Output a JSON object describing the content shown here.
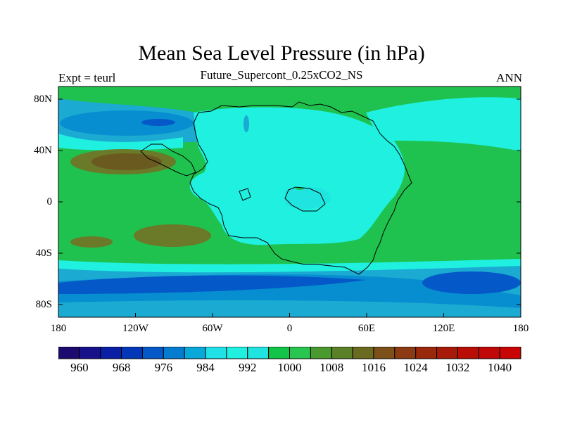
{
  "title": "Mean Sea Level Pressure (in hPa)",
  "subtitle": "Future_Supercont_0.25xCO2_NS",
  "left_label": "Expt = teurl",
  "right_label": "ANN",
  "map": {
    "projection": "cylindrical-equidistant",
    "lon_range": [
      -180,
      180
    ],
    "lat_range": [
      -90,
      90
    ],
    "y_ticks": [
      "80N",
      "40N",
      "0",
      "40S",
      "80S"
    ],
    "x_ticks": [
      "180",
      "120W",
      "60W",
      "0",
      "60E",
      "120E",
      "180"
    ],
    "background_color": "#1fc24e",
    "continent_fill": "#1ff0e0",
    "coastline_color": "#000000"
  },
  "colorbar": {
    "labels": [
      "960",
      "968",
      "976",
      "984",
      "992",
      "1000",
      "1008",
      "1016",
      "1024",
      "1032",
      "1040"
    ],
    "colors": [
      "#1c0a6e",
      "#18128a",
      "#0a1ea6",
      "#0238b8",
      "#0458c8",
      "#047cd0",
      "#08a8d8",
      "#20e0e8",
      "#1ff0e0",
      "#1fe4e0",
      "#12c448",
      "#28c650",
      "#4a9a30",
      "#5a8028",
      "#6a6a20",
      "#7c5018",
      "#8c3a12",
      "#9a280c",
      "#a81a08",
      "#b80e06",
      "#c00808",
      "#c80404"
    ]
  },
  "chart_data": {
    "type": "heatmap",
    "title": "Mean Sea Level Pressure (in hPa)",
    "subtitle": "Future_Supercont_0.25xCO2_NS",
    "season": "ANN",
    "experiment": "Expt = teurl",
    "x_ticks": [
      "180",
      "120W",
      "60W",
      "0",
      "60E",
      "120E",
      "180"
    ],
    "y_ticks": [
      "80N",
      "40N",
      "0",
      "40S",
      "80S"
    ],
    "contour_levels": [
      960,
      964,
      968,
      972,
      976,
      980,
      984,
      988,
      992,
      996,
      1000,
      1004,
      1008,
      1012,
      1016,
      1020,
      1024,
      1028,
      1032,
      1036,
      1040
    ],
    "colorbar_labels": [
      960,
      968,
      976,
      984,
      992,
      1000,
      1008,
      1016,
      1024,
      1032,
      1040
    ]
  }
}
